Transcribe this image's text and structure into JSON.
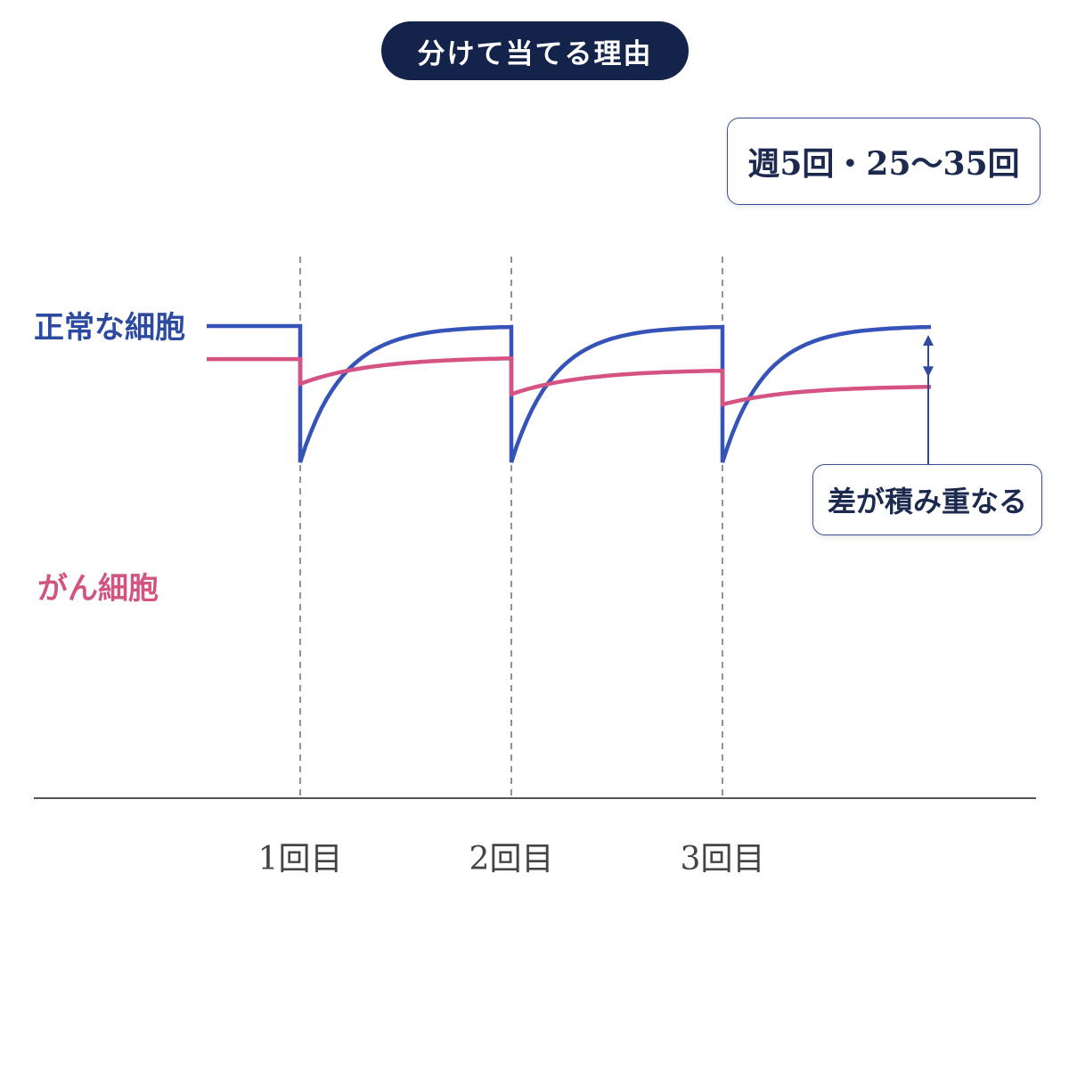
{
  "title": "分けて当てる理由",
  "frequency_note": "週5回・25〜35回",
  "gap_note": "差が積み重なる",
  "colors": {
    "title_bg": "#13234a",
    "normal": "#3553b8",
    "cancer": "#d45383",
    "axis": "#555555",
    "arrow": "#2f4a9c"
  },
  "chart_data": {
    "type": "line",
    "title": "分けて当てる理由",
    "xlabel": "",
    "ylabel": "",
    "categories": [
      "1回目",
      "2回目",
      "3回目"
    ],
    "grid": false,
    "legend": "left",
    "series": [
      {
        "name": "正常な細胞",
        "color": "#3553b8",
        "before": 100,
        "after_dose": [
          34,
          34,
          34
        ],
        "recovered": [
          100,
          100,
          100
        ]
      },
      {
        "name": "がん細胞",
        "color": "#d45383",
        "before": 84,
        "after_dose": [
          72,
          67,
          62
        ],
        "recovered": [
          85,
          79,
          71
        ]
      }
    ],
    "ylim": [
      -2,
      112
    ]
  }
}
